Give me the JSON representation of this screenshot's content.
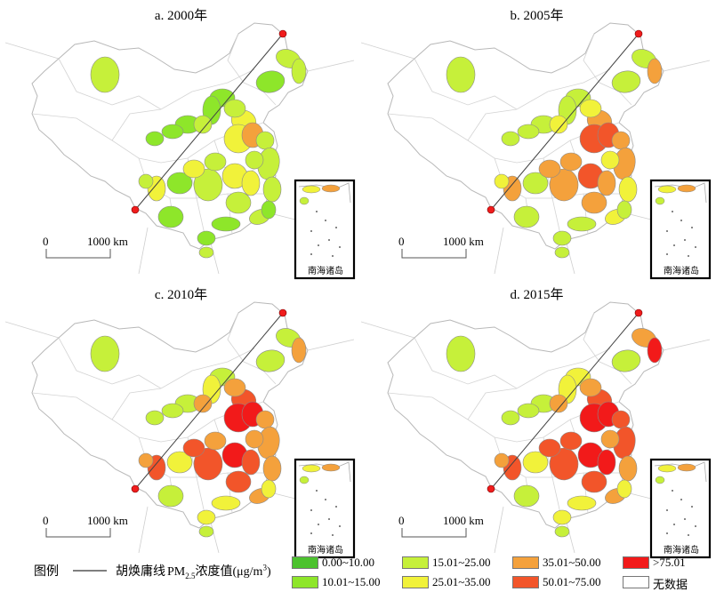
{
  "panels": [
    {
      "title": "a. 2000年",
      "levels": [
        2,
        2,
        1,
        2,
        1,
        3,
        1,
        2,
        3,
        4,
        2,
        1,
        2,
        1,
        1,
        2,
        2,
        1,
        2,
        3,
        3,
        2,
        1,
        2,
        1,
        3,
        3,
        2,
        2,
        1,
        1,
        2
      ]
    },
    {
      "title": "b. 2005年",
      "levels": [
        2,
        2,
        2,
        4,
        2,
        4,
        2,
        3,
        5,
        5,
        4,
        2,
        3,
        2,
        2,
        4,
        3,
        2,
        4,
        5,
        4,
        4,
        2,
        3,
        2,
        4,
        4,
        4,
        3,
        2,
        2,
        3
      ]
    },
    {
      "title": "c. 2010年",
      "levels": [
        2,
        2,
        2,
        4,
        2,
        5,
        3,
        4,
        6,
        6,
        4,
        2,
        4,
        2,
        2,
        4,
        4,
        3,
        5,
        6,
        5,
        5,
        3,
        4,
        2,
        5,
        5,
        4,
        4,
        3,
        3,
        4
      ]
    },
    {
      "title": "d. 2015年",
      "levels": [
        2,
        4,
        2,
        6,
        3,
        5,
        3,
        4,
        6,
        6,
        5,
        2,
        4,
        2,
        2,
        5,
        4,
        3,
        5,
        6,
        6,
        5,
        3,
        4,
        2,
        5,
        5,
        5,
        4,
        3,
        3,
        4
      ]
    }
  ],
  "scale": {
    "zero": "0",
    "dist": "1000 km"
  },
  "inset_label": "南海诸岛",
  "legend": {
    "title": "图例",
    "line_label": "胡焕庸线",
    "pm_label_prefix": "PM",
    "pm_label_sub": "2.5",
    "pm_label_suffix": "浓度值(μg/m",
    "pm_label_sup": "3",
    "pm_label_end": ")",
    "classes": [
      {
        "label": "0.00~10.00",
        "color": "#4cc22e"
      },
      {
        "label": "10.01~15.00",
        "color": "#8ee62a"
      },
      {
        "label": "15.01~25.00",
        "color": "#c6f03a"
      },
      {
        "label": "25.01~35.00",
        "color": "#f1f23a"
      },
      {
        "label": "35.01~50.00",
        "color": "#f4a13c"
      },
      {
        "label": "50.01~75.00",
        "color": "#f2552a"
      },
      {
        "label": ">75.01",
        "color": "#f21a1a"
      },
      {
        "label": "无数据",
        "color": "#ffffff"
      }
    ]
  }
}
